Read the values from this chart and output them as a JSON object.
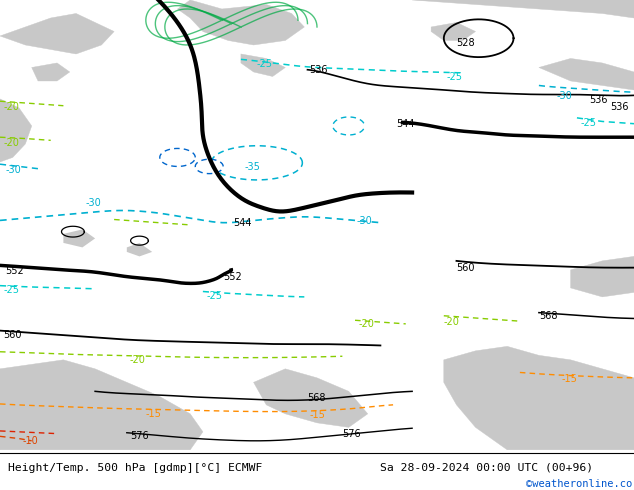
{
  "title_left": "Height/Temp. 500 hPa [gdmp][°C] ECMWF",
  "title_right": "Sa 28-09-2024 00:00 UTC (00+96)",
  "watermark": "©weatheronline.co.uk",
  "bg_color": "#b5d9a0",
  "land_color": "#c8c8c8",
  "fig_width": 6.34,
  "fig_height": 4.9,
  "dpi": 100
}
